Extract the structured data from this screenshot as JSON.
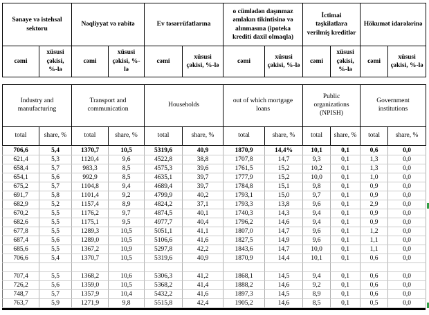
{
  "table": {
    "header_az": {
      "groups": [
        "Sənaye və istehsal sektoru",
        "Nəqliyyat və rabitə",
        "Ev təsərrüfatlarına",
        "o cümlədən daşınmaz əmlakın tikintisinə və alınmasına (ipoteka krediti daxil olmaqla)",
        "İctimai təşkilatlara verilmiş kreditlər",
        "Hökumət idarələrinə"
      ],
      "total_label": "cəmi",
      "share_label": "xüsusi çəkisi, %-lə"
    },
    "header_en": {
      "groups": [
        "Industry and manufacturing",
        "Transport and communication",
        "Households",
        "out of which mortgage loans",
        "Public organizations (NPISH)",
        "Government institutions"
      ],
      "total_label": "total",
      "share_label": "share, %"
    },
    "block1_rows": [
      [
        "706,6",
        "5,4",
        "1370,7",
        "10,5",
        "5319,6",
        "40,9",
        "1870,9",
        "14,4%",
        "10,1",
        "0,1",
        "0,6",
        "0,0"
      ],
      [
        "621,4",
        "5,3",
        "1120,4",
        "9,6",
        "4522,8",
        "38,8",
        "1707,8",
        "14,7",
        "9,3",
        "0,1",
        "1,3",
        "0,0"
      ],
      [
        "658,4",
        "5,7",
        "983,3",
        "8,5",
        "4575,3",
        "39,6",
        "1761,5",
        "15,2",
        "10,2",
        "0,1",
        "1,3",
        "0,0"
      ],
      [
        "654,1",
        "5,6",
        "992,9",
        "8,5",
        "4635,1",
        "39,7",
        "1777,9",
        "15,2",
        "10,0",
        "0,1",
        "1,0",
        "0,0"
      ],
      [
        "675,2",
        "5,7",
        "1104,8",
        "9,4",
        "4689,4",
        "39,7",
        "1784,8",
        "15,1",
        "9,8",
        "0,1",
        "0,9",
        "0,0"
      ],
      [
        "691,7",
        "5,8",
        "1101,4",
        "9,2",
        "4799,9",
        "40,2",
        "1793,1",
        "15,0",
        "9,7",
        "0,1",
        "0,9",
        "0,0"
      ],
      [
        "682,9",
        "5,2",
        "1157,4",
        "8,9",
        "4824,2",
        "37,1",
        "1793,3",
        "13,8",
        "9,6",
        "0,1",
        "2,9",
        "0,0"
      ],
      [
        "670,2",
        "5,5",
        "1176,2",
        "9,7",
        "4874,5",
        "40,1",
        "1740,3",
        "14,3",
        "9,4",
        "0,1",
        "0,9",
        "0,0"
      ],
      [
        "682,6",
        "5,5",
        "1175,1",
        "9,5",
        "4977,7",
        "40,4",
        "1796,2",
        "14,6",
        "9,4",
        "0,1",
        "0,9",
        "0,0"
      ],
      [
        "677,8",
        "5,5",
        "1289,3",
        "10,5",
        "5051,1",
        "41,1",
        "1807,0",
        "14,7",
        "9,6",
        "0,1",
        "1,2",
        "0,0"
      ],
      [
        "687,4",
        "5,6",
        "1289,0",
        "10,5",
        "5106,6",
        "41,6",
        "1827,5",
        "14,9",
        "9,6",
        "0,1",
        "1,1",
        "0,0"
      ],
      [
        "685,6",
        "5,5",
        "1367,2",
        "10,9",
        "5297,8",
        "42,2",
        "1843,6",
        "14,7",
        "10,0",
        "0,1",
        "1,1",
        "0,0"
      ],
      [
        "706,6",
        "5,4",
        "1370,7",
        "10,5",
        "5319,6",
        "40,9",
        "1870,9",
        "14,4",
        "10,1",
        "0,1",
        "0,6",
        "0,0"
      ]
    ],
    "block2_rows": [
      [
        "707,4",
        "5,5",
        "1368,2",
        "10,6",
        "5306,3",
        "41,2",
        "1868,1",
        "14,5",
        "9,4",
        "0,1",
        "0,6",
        "0,0"
      ],
      [
        "726,2",
        "5,6",
        "1359,0",
        "10,5",
        "5368,2",
        "41,4",
        "1888,2",
        "14,6",
        "9,2",
        "0,1",
        "0,6",
        "0,0"
      ],
      [
        "748,7",
        "5,7",
        "1357,9",
        "10,4",
        "5432,2",
        "41,6",
        "1897,3",
        "14,5",
        "8,9",
        "0,1",
        "0,6",
        "0,0"
      ],
      [
        "763,7",
        "5,9",
        "1271,9",
        "9,8",
        "5515,8",
        "42,4",
        "1905,2",
        "14,6",
        "8,5",
        "0,1",
        "0,5",
        "0,0"
      ]
    ]
  },
  "markers": {
    "selection_color": "#2f9e44"
  }
}
